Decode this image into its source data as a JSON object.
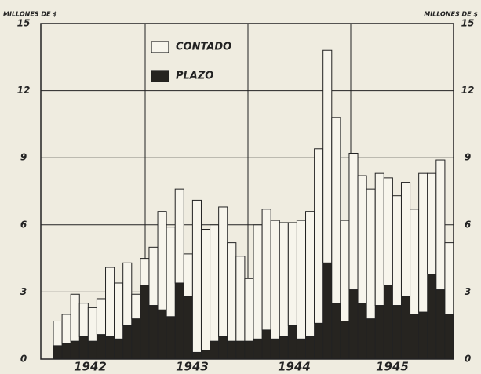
{
  "chart_data": {
    "type": "stacked_bar",
    "y_axis_label": "MILLONES DE $",
    "y2_axis_label": "MILLONES DE $",
    "categories": [
      null,
      null,
      null,
      null,
      null,
      null,
      null,
      null,
      null,
      null,
      null,
      null,
      null,
      null,
      null,
      null,
      null,
      null,
      null,
      null,
      null,
      null,
      null,
      null,
      null,
      null,
      null,
      null,
      null,
      null,
      null,
      null,
      null,
      null,
      null,
      null,
      null,
      null,
      null,
      null,
      null,
      null,
      null,
      null,
      null,
      null
    ],
    "year_labels": [
      "1942",
      "1943",
      "1944",
      "1945"
    ],
    "series": [
      {
        "name": "PLAZO",
        "color": "#262420",
        "values": [
          0.6,
          0.7,
          0.8,
          1.0,
          0.8,
          1.1,
          1.0,
          0.9,
          1.5,
          1.8,
          3.3,
          2.4,
          2.2,
          1.9,
          3.4,
          2.8,
          0.3,
          0.4,
          0.8,
          1.0,
          0.8,
          0.8,
          0.8,
          0.9,
          1.3,
          0.9,
          1.0,
          1.5,
          0.9,
          1.0,
          1.6,
          4.3,
          2.5,
          1.7,
          3.1,
          2.5,
          1.8,
          2.4,
          3.3,
          2.4,
          2.8,
          2.0,
          2.1,
          3.8,
          3.1,
          2.0
        ]
      },
      {
        "name": "CONTADO",
        "color": "#f7f5ec",
        "values": [
          1.1,
          1.3,
          2.1,
          1.5,
          1.5,
          1.6,
          3.1,
          2.5,
          2.8,
          1.1,
          1.2,
          2.6,
          4.4,
          4.0,
          4.2,
          1.9,
          6.8,
          5.4,
          5.2,
          5.8,
          4.4,
          3.8,
          2.8,
          5.1,
          5.4,
          5.3,
          5.1,
          4.6,
          5.3,
          5.6,
          7.8,
          9.5,
          8.3,
          4.5,
          6.1,
          5.7,
          5.8,
          5.9,
          4.8,
          4.9,
          5.1,
          4.7,
          6.2,
          4.5,
          5.8,
          3.2
        ]
      }
    ],
    "ylim": [
      0,
      15
    ],
    "yticks": [
      0,
      3,
      6,
      9,
      12,
      15
    ],
    "y2lim": [
      0,
      15
    ],
    "y2ticks": [
      0,
      3,
      6,
      9,
      12,
      15
    ],
    "grid": true
  }
}
